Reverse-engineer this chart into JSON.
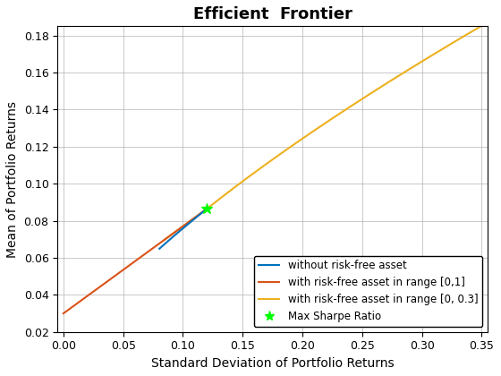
{
  "title": "Efficient  Frontier",
  "xlabel": "Standard Deviation of Portfolio Returns",
  "ylabel": "Mean of Portfolio Returns",
  "xlim": [
    -0.005,
    0.355
  ],
  "ylim": [
    0.02,
    0.185
  ],
  "xticks": [
    0,
    0.05,
    0.1,
    0.15,
    0.2,
    0.25,
    0.3,
    0.35
  ],
  "yticks": [
    0.02,
    0.04,
    0.06,
    0.08,
    0.1,
    0.12,
    0.14,
    0.16,
    0.18
  ],
  "rf": 0.03,
  "tangency_std": 0.12,
  "tangency_mean": 0.096,
  "min_var_std": 0.08,
  "min_var_mean": 0.06,
  "frontier_power": 0.42,
  "frontier_scale": 0.326,
  "colors": {
    "blue": "#0072BD",
    "red": "#D95319",
    "yellow": "#EDB120",
    "green": "#00FF00"
  },
  "legend_labels": [
    "without risk-free asset",
    "with risk-free asset in range [0,1]",
    "with risk-free asset in range [0, 0.3]",
    "Max Sharpe Ratio"
  ]
}
